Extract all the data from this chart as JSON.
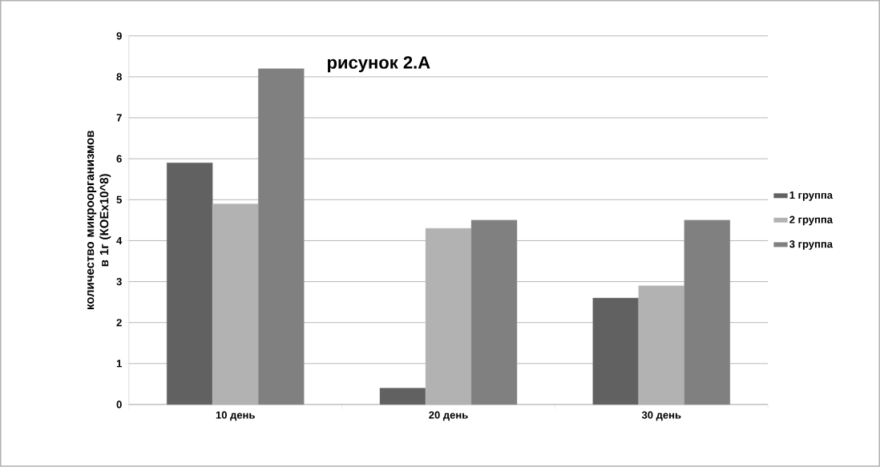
{
  "chart_data": {
    "type": "bar",
    "title": "рисунок 2.A",
    "ylabel": "количество микроорганизмов в 1г (КОЕх10^8)",
    "categories": [
      "10 день",
      "20 день",
      "30 день"
    ],
    "series": [
      {
        "name": "1 группа",
        "color": "#616161",
        "values": [
          5.9,
          0.4,
          2.6
        ]
      },
      {
        "name": "2 группа",
        "color": "#b2b2b2",
        "values": [
          4.9,
          4.3,
          2.9
        ]
      },
      {
        "name": "3 группа",
        "color": "#808080",
        "values": [
          8.2,
          4.5,
          4.5
        ]
      }
    ],
    "ylim": [
      0,
      9
    ],
    "yticks": [
      0,
      1,
      2,
      3,
      4,
      5,
      6,
      7,
      8,
      9
    ],
    "grid": "y",
    "legend": "right"
  }
}
